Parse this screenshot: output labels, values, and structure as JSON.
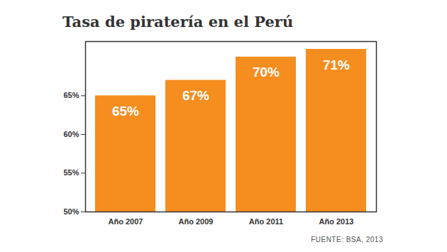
{
  "chart_data": {
    "type": "bar",
    "title": "Tasa de piratería en el Perú",
    "source": "FUENTE: BSA, 2013",
    "categories": [
      "Año 2007",
      "Año 2009",
      "Año 2011",
      "Año 2013"
    ],
    "values": [
      65,
      67,
      70,
      71
    ],
    "value_labels": [
      "65%",
      "67%",
      "70%",
      "71%"
    ],
    "color": "#f68d1f",
    "ylim": [
      50,
      72
    ],
    "yticks": [
      {
        "value": 50,
        "label": "50%"
      },
      {
        "value": 55,
        "label": "55%"
      },
      {
        "value": 60,
        "label": "60%"
      },
      {
        "value": 65,
        "label": "65%"
      }
    ],
    "grid": false,
    "data_labels": true
  }
}
